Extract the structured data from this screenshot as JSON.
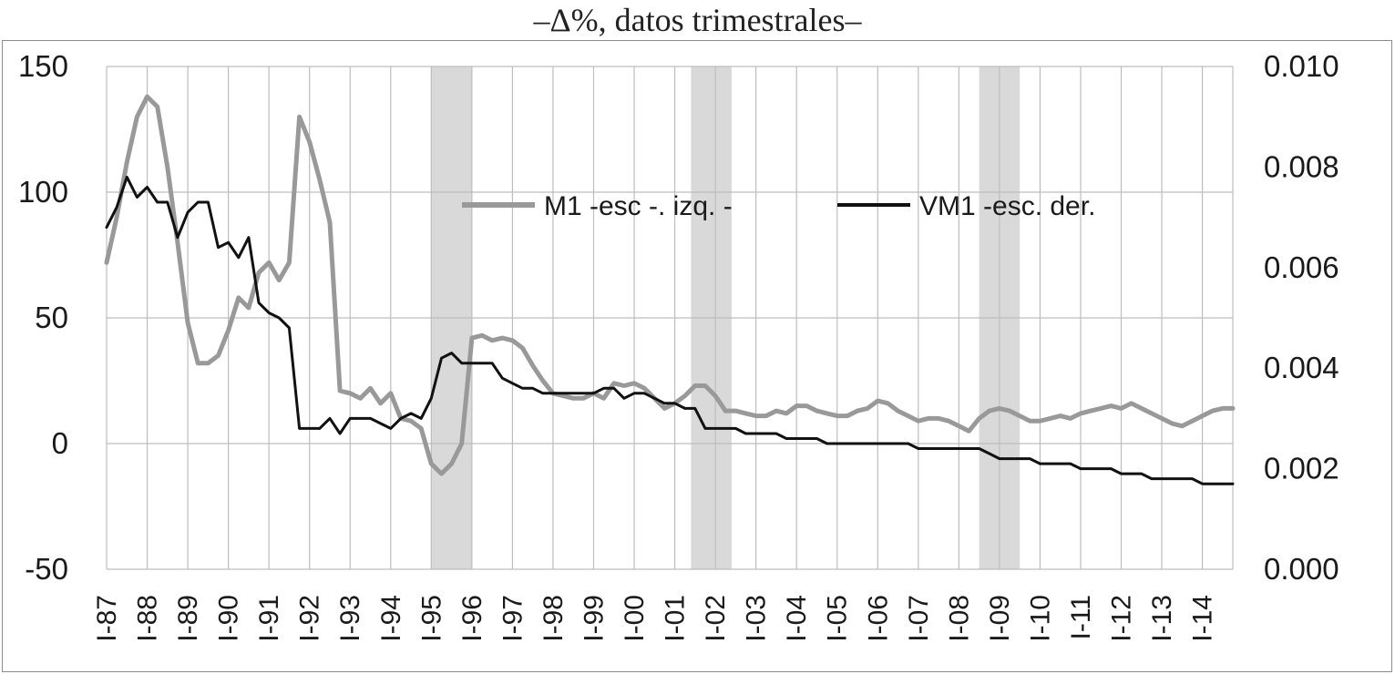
{
  "chart_data": {
    "type": "line",
    "title": "–Δ%, datos trimestrales–",
    "colors": {
      "m1": "#999999",
      "vm1": "#111111",
      "grid": "#bdbdbd",
      "recession": "#d9d9d9"
    },
    "axes": {
      "left": {
        "min": -50,
        "max": 150,
        "ticks": [
          -50,
          0,
          50,
          100,
          150
        ],
        "tick_labels": [
          "-50",
          "0",
          "50",
          "100",
          "150"
        ]
      },
      "right": {
        "min": 0.0,
        "max": 0.01,
        "ticks": [
          0.0,
          0.002,
          0.004,
          0.006,
          0.008,
          0.01
        ],
        "tick_labels": [
          "0.000",
          "0.002",
          "0.004",
          "0.006",
          "0.008",
          "0.010"
        ]
      },
      "x": {
        "min": 1987.0,
        "max": 2014.75,
        "ticks": [
          1987,
          1988,
          1989,
          1990,
          1991,
          1992,
          1993,
          1994,
          1995,
          1996,
          1997,
          1998,
          1999,
          2000,
          2001,
          2002,
          2003,
          2004,
          2005,
          2006,
          2007,
          2008,
          2009,
          2010,
          2011,
          2012,
          2013,
          2014
        ],
        "tick_labels": [
          "I-87",
          "I-88",
          "I-89",
          "I-90",
          "I-91",
          "I-92",
          "I-93",
          "I-94",
          "I-95",
          "I-96",
          "I-97",
          "I-98",
          "I-99",
          "I-00",
          "I-01",
          "I-02",
          "I-03",
          "I-04",
          "I-05",
          "I-06",
          "I-07",
          "I-08",
          "I-09",
          "I-10",
          "I-11",
          "I-12",
          "I-13",
          "I-14"
        ]
      },
      "grid": true
    },
    "legend": {
      "position": "top-center",
      "entries": [
        {
          "label": "M1  -esc -. izq. -",
          "series": "m1"
        },
        {
          "label": "VM1  -esc. der.",
          "series": "vm1"
        }
      ]
    },
    "recession_bands": [
      {
        "start": 1995.0,
        "end": 1996.0
      },
      {
        "start": 2001.4,
        "end": 2002.4
      },
      {
        "start": 2008.5,
        "end": 2009.5
      }
    ],
    "x": [
      1987.0,
      1987.25,
      1987.5,
      1987.75,
      1988.0,
      1988.25,
      1988.5,
      1988.75,
      1989.0,
      1989.25,
      1989.5,
      1989.75,
      1990.0,
      1990.25,
      1990.5,
      1990.75,
      1991.0,
      1991.25,
      1991.5,
      1991.75,
      1992.0,
      1992.25,
      1992.5,
      1992.75,
      1993.0,
      1993.25,
      1993.5,
      1993.75,
      1994.0,
      1994.25,
      1994.5,
      1994.75,
      1995.0,
      1995.25,
      1995.5,
      1995.75,
      1996.0,
      1996.25,
      1996.5,
      1996.75,
      1997.0,
      1997.25,
      1997.5,
      1997.75,
      1998.0,
      1998.25,
      1998.5,
      1998.75,
      1999.0,
      1999.25,
      1999.5,
      1999.75,
      2000.0,
      2000.25,
      2000.5,
      2000.75,
      2001.0,
      2001.25,
      2001.5,
      2001.75,
      2002.0,
      2002.25,
      2002.5,
      2002.75,
      2003.0,
      2003.25,
      2003.5,
      2003.75,
      2004.0,
      2004.25,
      2004.5,
      2004.75,
      2005.0,
      2005.25,
      2005.5,
      2005.75,
      2006.0,
      2006.25,
      2006.5,
      2006.75,
      2007.0,
      2007.25,
      2007.5,
      2007.75,
      2008.0,
      2008.25,
      2008.5,
      2008.75,
      2009.0,
      2009.25,
      2009.5,
      2009.75,
      2010.0,
      2010.25,
      2010.5,
      2010.75,
      2011.0,
      2011.25,
      2011.5,
      2011.75,
      2012.0,
      2012.25,
      2012.5,
      2012.75,
      2013.0,
      2013.25,
      2013.5,
      2013.75,
      2014.0,
      2014.25,
      2014.5,
      2014.75
    ],
    "series": [
      {
        "name": "M1",
        "key": "m1",
        "axis": "left",
        "values": [
          72,
          90,
          112,
          130,
          138,
          134,
          110,
          80,
          48,
          32,
          32,
          35,
          45,
          58,
          54,
          68,
          72,
          65,
          72,
          130,
          120,
          105,
          88,
          21,
          20,
          18,
          22,
          16,
          20,
          10,
          9,
          6,
          -8,
          -12,
          -8,
          0,
          42,
          43,
          41,
          42,
          41,
          38,
          31,
          25,
          20,
          19,
          18,
          18,
          20,
          18,
          24,
          23,
          24,
          22,
          18,
          14,
          16,
          19,
          23,
          23,
          19,
          13,
          13,
          12,
          11,
          11,
          13,
          12,
          15,
          15,
          13,
          12,
          11,
          11,
          13,
          14,
          17,
          16,
          13,
          11,
          9,
          10,
          10,
          9,
          7,
          5,
          10,
          13,
          14,
          13,
          11,
          9,
          9,
          10,
          11,
          10,
          12,
          13,
          14,
          15,
          14,
          16,
          14,
          12,
          10,
          8,
          7,
          9,
          11,
          13,
          14,
          14
        ]
      },
      {
        "name": "VM1",
        "key": "vm1",
        "axis": "right",
        "values": [
          0.0068,
          0.0072,
          0.0078,
          0.0074,
          0.0076,
          0.0073,
          0.0073,
          0.0066,
          0.0071,
          0.0073,
          0.0073,
          0.0064,
          0.0065,
          0.0062,
          0.0066,
          0.0053,
          0.0051,
          0.005,
          0.0048,
          0.0028,
          0.0028,
          0.0028,
          0.003,
          0.0027,
          0.003,
          0.003,
          0.003,
          0.0029,
          0.0028,
          0.003,
          0.0031,
          0.003,
          0.0034,
          0.0042,
          0.0043,
          0.0041,
          0.0041,
          0.0041,
          0.0041,
          0.0038,
          0.0037,
          0.0036,
          0.0036,
          0.0035,
          0.0035,
          0.0035,
          0.0035,
          0.0035,
          0.0035,
          0.0036,
          0.0036,
          0.0034,
          0.0035,
          0.0035,
          0.0034,
          0.0033,
          0.0033,
          0.0032,
          0.0032,
          0.0028,
          0.0028,
          0.0028,
          0.0028,
          0.0027,
          0.0027,
          0.0027,
          0.0027,
          0.0026,
          0.0026,
          0.0026,
          0.0026,
          0.0025,
          0.0025,
          0.0025,
          0.0025,
          0.0025,
          0.0025,
          0.0025,
          0.0025,
          0.0025,
          0.0024,
          0.0024,
          0.0024,
          0.0024,
          0.0024,
          0.0024,
          0.0024,
          0.0023,
          0.0022,
          0.0022,
          0.0022,
          0.0022,
          0.0021,
          0.0021,
          0.0021,
          0.0021,
          0.002,
          0.002,
          0.002,
          0.002,
          0.0019,
          0.0019,
          0.0019,
          0.0018,
          0.0018,
          0.0018,
          0.0018,
          0.0018,
          0.0017,
          0.0017,
          0.0017,
          0.0017
        ]
      }
    ]
  }
}
